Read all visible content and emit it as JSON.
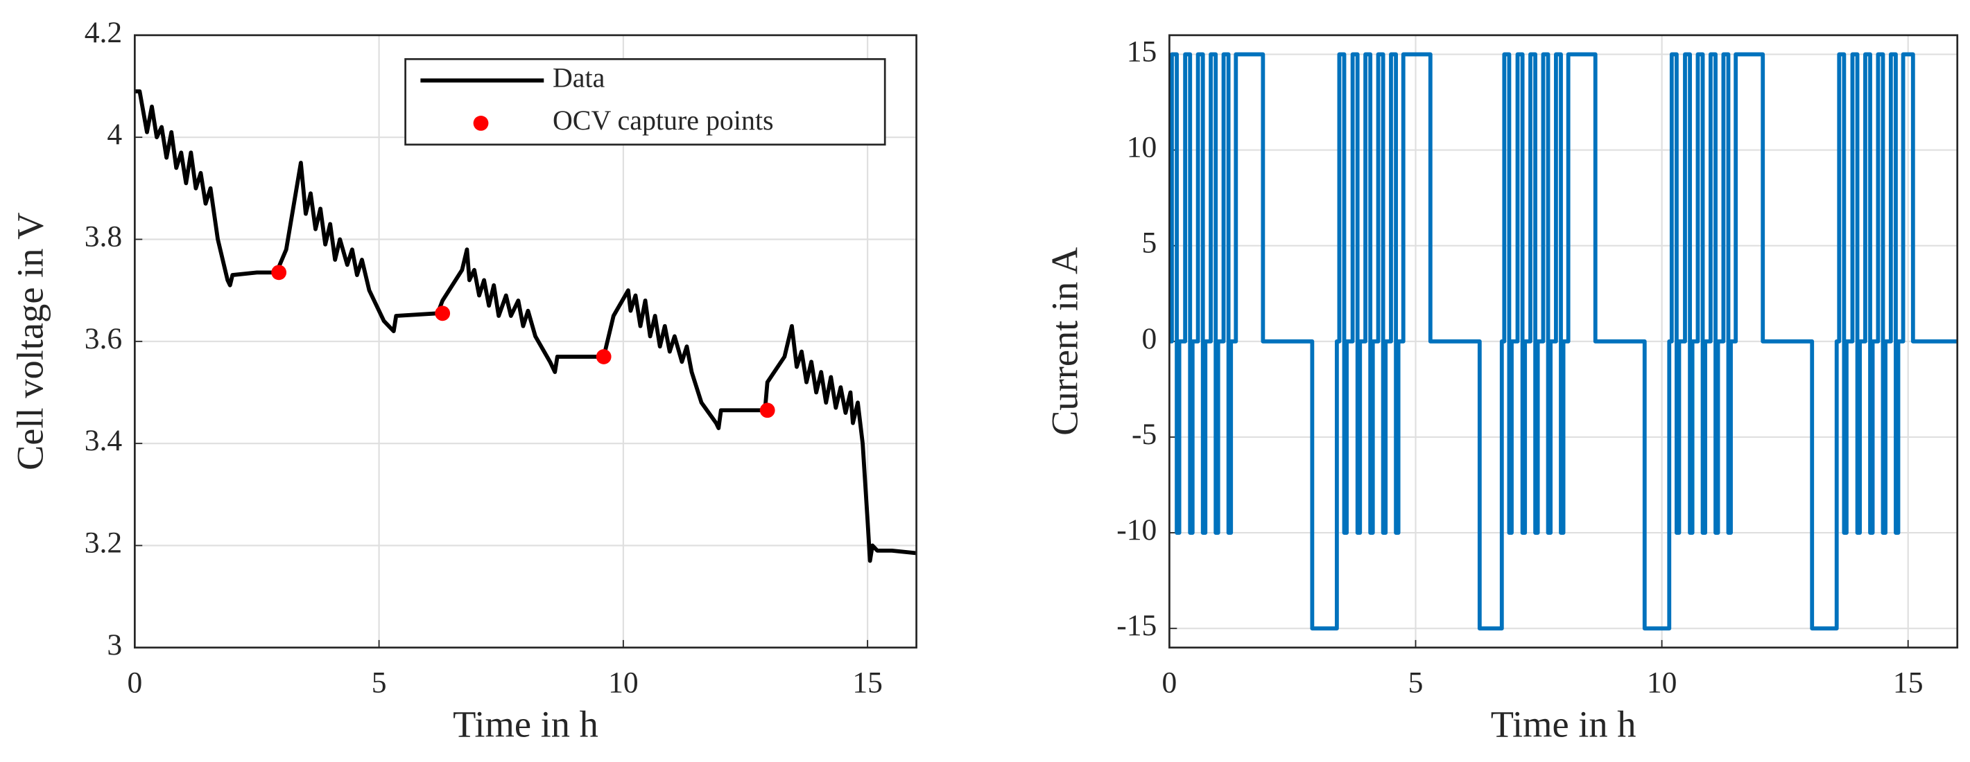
{
  "chart_data": [
    {
      "type": "line",
      "xlabel": "Time in h",
      "ylabel": "Cell voltage in V",
      "xlim": [
        0,
        16
      ],
      "ylim": [
        3,
        4.2
      ],
      "xticks": [
        0,
        5,
        10,
        15
      ],
      "yticks": [
        3,
        3.2,
        3.4,
        3.6,
        3.8,
        4,
        4.2
      ],
      "grid": true,
      "legend": "upper right",
      "series": [
        {
          "name": "Data",
          "type": "line",
          "color": "#000000",
          "x": [
            0,
            0.1,
            0.25,
            0.35,
            0.45,
            0.55,
            0.65,
            0.75,
            0.85,
            0.95,
            1.05,
            1.15,
            1.25,
            1.35,
            1.45,
            1.55,
            1.7,
            1.9,
            1.95,
            2.0,
            2.5,
            2.9,
            3.1,
            3.4,
            3.5,
            3.6,
            3.7,
            3.8,
            3.9,
            4.0,
            4.1,
            4.2,
            4.35,
            4.45,
            4.55,
            4.65,
            4.8,
            5.1,
            5.3,
            5.35,
            6.2,
            6.3,
            6.7,
            6.8,
            6.85,
            6.95,
            7.05,
            7.15,
            7.25,
            7.35,
            7.45,
            7.6,
            7.7,
            7.85,
            7.95,
            8.05,
            8.2,
            8.5,
            8.6,
            8.65,
            9.5,
            9.6,
            9.8,
            10.1,
            10.15,
            10.25,
            10.35,
            10.45,
            10.55,
            10.65,
            10.75,
            10.85,
            10.95,
            11.05,
            11.2,
            11.3,
            11.4,
            11.6,
            11.9,
            11.95,
            12.0,
            12.9,
            12.95,
            13.3,
            13.45,
            13.55,
            13.65,
            13.75,
            13.85,
            13.95,
            14.05,
            14.15,
            14.25,
            14.35,
            14.45,
            14.55,
            14.65,
            14.7,
            14.8,
            14.9,
            15.0,
            15.05,
            15.1,
            15.2,
            15.5,
            16
          ],
          "values": [
            4.09,
            4.09,
            4.01,
            4.06,
            4.0,
            4.02,
            3.96,
            4.01,
            3.94,
            3.97,
            3.91,
            3.97,
            3.9,
            3.93,
            3.87,
            3.9,
            3.8,
            3.72,
            3.71,
            3.73,
            3.735,
            3.735,
            3.78,
            3.95,
            3.85,
            3.89,
            3.82,
            3.86,
            3.79,
            3.83,
            3.76,
            3.8,
            3.75,
            3.78,
            3.73,
            3.76,
            3.7,
            3.64,
            3.62,
            3.65,
            3.655,
            3.68,
            3.74,
            3.78,
            3.72,
            3.74,
            3.69,
            3.72,
            3.67,
            3.71,
            3.65,
            3.69,
            3.65,
            3.68,
            3.63,
            3.66,
            3.61,
            3.56,
            3.54,
            3.57,
            3.57,
            3.57,
            3.65,
            3.7,
            3.66,
            3.69,
            3.63,
            3.68,
            3.61,
            3.65,
            3.59,
            3.63,
            3.58,
            3.61,
            3.56,
            3.59,
            3.54,
            3.48,
            3.44,
            3.43,
            3.465,
            3.465,
            3.52,
            3.57,
            3.63,
            3.55,
            3.58,
            3.52,
            3.56,
            3.5,
            3.54,
            3.48,
            3.53,
            3.47,
            3.51,
            3.46,
            3.5,
            3.44,
            3.48,
            3.4,
            3.25,
            3.17,
            3.2,
            3.19,
            3.19,
            3.185
          ]
        },
        {
          "name": "OCV capture points",
          "type": "scatter",
          "color": "#ff0000",
          "x": [
            2.95,
            6.3,
            9.6,
            12.95
          ],
          "values": [
            3.735,
            3.655,
            3.57,
            3.465
          ]
        }
      ]
    },
    {
      "type": "line",
      "xlabel": "Time in h",
      "ylabel": "Current in A",
      "xlim": [
        0,
        16
      ],
      "ylim": [
        -16,
        16
      ],
      "xticks": [
        0,
        5,
        10,
        15
      ],
      "yticks": [
        -15,
        -10,
        -5,
        0,
        5,
        10,
        15
      ],
      "grid": true,
      "series": [
        {
          "type": "line",
          "color": "#0072bd",
          "x": [
            0,
            0.05,
            0.05,
            0.15,
            0.15,
            0.2,
            0.2,
            0.32,
            0.32,
            0.42,
            0.42,
            0.47,
            0.47,
            0.58,
            0.58,
            0.68,
            0.68,
            0.73,
            0.73,
            0.84,
            0.84,
            0.94,
            0.94,
            0.99,
            0.99,
            1.1,
            1.1,
            1.2,
            1.2,
            1.25,
            1.25,
            1.35,
            1.35,
            1.9,
            1.9,
            2.9,
            2.9,
            3.4,
            3.4,
            3.45,
            3.45,
            3.55,
            3.55,
            3.6,
            3.6,
            3.72,
            3.72,
            3.82,
            3.82,
            3.87,
            3.87,
            3.98,
            3.98,
            4.08,
            4.08,
            4.13,
            4.13,
            4.24,
            4.24,
            4.34,
            4.34,
            4.39,
            4.39,
            4.5,
            4.5,
            4.6,
            4.6,
            4.65,
            4.65,
            4.75,
            4.75,
            5.3,
            5.3,
            6.3,
            6.3,
            6.75,
            6.75,
            6.8,
            6.8,
            6.9,
            6.9,
            6.95,
            6.95,
            7.07,
            7.07,
            7.17,
            7.17,
            7.22,
            7.22,
            7.33,
            7.33,
            7.43,
            7.43,
            7.48,
            7.48,
            7.59,
            7.59,
            7.69,
            7.69,
            7.74,
            7.74,
            7.85,
            7.85,
            7.95,
            7.95,
            8.0,
            8.0,
            8.1,
            8.1,
            8.65,
            8.65,
            9.65,
            9.65,
            10.15,
            10.15,
            10.2,
            10.2,
            10.3,
            10.3,
            10.35,
            10.35,
            10.47,
            10.47,
            10.57,
            10.57,
            10.62,
            10.62,
            10.73,
            10.73,
            10.83,
            10.83,
            10.88,
            10.88,
            10.99,
            10.99,
            11.09,
            11.09,
            11.14,
            11.14,
            11.25,
            11.25,
            11.35,
            11.35,
            11.4,
            11.4,
            11.5,
            11.5,
            12.05,
            12.05,
            13.05,
            13.05,
            13.55,
            13.55,
            13.6,
            13.6,
            13.7,
            13.7,
            13.75,
            13.75,
            13.87,
            13.87,
            13.97,
            13.97,
            14.02,
            14.02,
            14.13,
            14.13,
            14.23,
            14.23,
            14.28,
            14.28,
            14.39,
            14.39,
            14.49,
            14.49,
            14.54,
            14.54,
            14.65,
            14.65,
            14.75,
            14.75,
            14.8,
            14.8,
            14.9,
            14.9,
            15.1,
            15.1,
            16
          ],
          "values": [
            0,
            0,
            15,
            15,
            -10,
            -10,
            0,
            0,
            15,
            15,
            -10,
            -10,
            0,
            0,
            15,
            15,
            -10,
            -10,
            0,
            0,
            15,
            15,
            -10,
            -10,
            0,
            0,
            15,
            15,
            -10,
            -10,
            0,
            0,
            15,
            15,
            0,
            0,
            -15,
            -15,
            0,
            0,
            15,
            15,
            -10,
            -10,
            0,
            0,
            15,
            15,
            -10,
            -10,
            0,
            0,
            15,
            15,
            -10,
            -10,
            0,
            0,
            15,
            15,
            -10,
            -10,
            0,
            0,
            15,
            15,
            -10,
            -10,
            0,
            0,
            15,
            15,
            0,
            0,
            -15,
            -15,
            0,
            0,
            15,
            15,
            -10,
            -10,
            0,
            0,
            15,
            15,
            -10,
            -10,
            0,
            0,
            15,
            15,
            -10,
            -10,
            0,
            0,
            15,
            15,
            -10,
            -10,
            0,
            0,
            15,
            15,
            -10,
            -10,
            0,
            0,
            15,
            15,
            0,
            0,
            -15,
            -15,
            0,
            0,
            15,
            15,
            -10,
            -10,
            0,
            0,
            15,
            15,
            -10,
            -10,
            0,
            0,
            15,
            15,
            -10,
            -10,
            0,
            0,
            15,
            15,
            -10,
            -10,
            0,
            0,
            15,
            15,
            -10,
            -10,
            0,
            0,
            15,
            15,
            0,
            0,
            -15,
            -15,
            0,
            0,
            15,
            15,
            -10,
            -10,
            0,
            0,
            15,
            15,
            -10,
            -10,
            0,
            0,
            15,
            15,
            -10,
            -10,
            0,
            0,
            15,
            15,
            -10,
            -10,
            0,
            0,
            15,
            15,
            -10,
            -10,
            0,
            0,
            15,
            15,
            0,
            0
          ]
        }
      ]
    }
  ]
}
